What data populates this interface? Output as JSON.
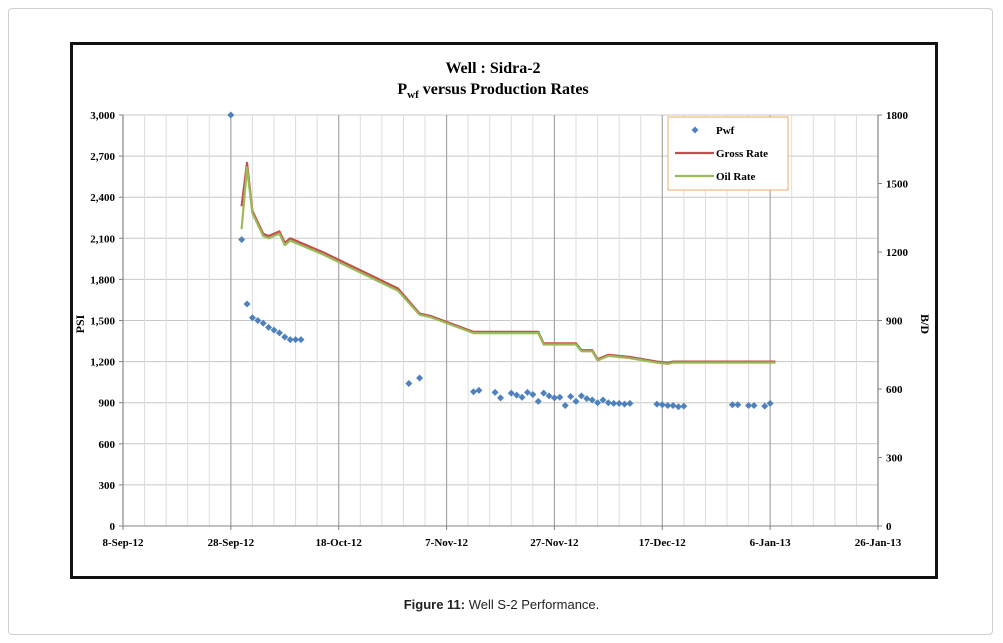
{
  "caption": {
    "label": "Figure 11:",
    "text": "Well S-2 Performance."
  },
  "chart_data": {
    "type": "line",
    "title_line1": "Well : Sidra-2",
    "title_line2": {
      "base": "P",
      "sub": "wf",
      "rest": " versus  Production Rates"
    },
    "xlabel": "",
    "ylabel_left": "PSI",
    "ylabel_right": "B/D",
    "x_ticks": [
      "8-Sep-12",
      "28-Sep-12",
      "18-Oct-12",
      "7-Nov-12",
      "27-Nov-12",
      "17-Dec-12",
      "6-Jan-13",
      "26-Jan-13"
    ],
    "xlim": [
      "2012-09-08",
      "2013-01-26"
    ],
    "ylim_left": [
      0,
      3000
    ],
    "y_ticks_left": [
      "0",
      "300",
      "600",
      "900",
      "1,200",
      "1,500",
      "1,800",
      "2,100",
      "2,400",
      "2,700",
      "3,000"
    ],
    "ylim_right": [
      0,
      1800
    ],
    "y_ticks_right": [
      "0",
      "300",
      "600",
      "900",
      "1200",
      "1500",
      "1800"
    ],
    "grid": true,
    "legend_position": "top-right",
    "colors": {
      "pwf": "#4f81bd",
      "gross": "#c0504d",
      "oil": "#9bbb59"
    },
    "series": [
      {
        "name": "Pwf",
        "axis": "left",
        "kind": "scatter",
        "points": [
          [
            "2012-09-28",
            3000
          ],
          [
            "2012-09-30",
            2090
          ],
          [
            "2012-10-01",
            1620
          ],
          [
            "2012-10-02",
            1520
          ],
          [
            "2012-10-03",
            1500
          ],
          [
            "2012-10-04",
            1480
          ],
          [
            "2012-10-05",
            1450
          ],
          [
            "2012-10-06",
            1430
          ],
          [
            "2012-10-07",
            1410
          ],
          [
            "2012-10-08",
            1380
          ],
          [
            "2012-10-09",
            1360
          ],
          [
            "2012-10-10",
            1360
          ],
          [
            "2012-10-11",
            1360
          ],
          [
            "2012-10-31",
            1040
          ],
          [
            "2012-11-02",
            1080
          ],
          [
            "2012-11-12",
            980
          ],
          [
            "2012-11-13",
            990
          ],
          [
            "2012-11-16",
            975
          ],
          [
            "2012-11-17",
            935
          ],
          [
            "2012-11-19",
            970
          ],
          [
            "2012-11-20",
            955
          ],
          [
            "2012-11-21",
            940
          ],
          [
            "2012-11-22",
            975
          ],
          [
            "2012-11-23",
            960
          ],
          [
            "2012-11-24",
            910
          ],
          [
            "2012-11-25",
            970
          ],
          [
            "2012-11-26",
            950
          ],
          [
            "2012-11-27",
            935
          ],
          [
            "2012-11-28",
            940
          ],
          [
            "2012-11-29",
            880
          ],
          [
            "2012-11-30",
            945
          ],
          [
            "2012-12-01",
            910
          ],
          [
            "2012-12-02",
            950
          ],
          [
            "2012-12-03",
            930
          ],
          [
            "2012-12-04",
            920
          ],
          [
            "2012-12-05",
            900
          ],
          [
            "2012-12-06",
            920
          ],
          [
            "2012-12-07",
            900
          ],
          [
            "2012-12-08",
            895
          ],
          [
            "2012-12-09",
            895
          ],
          [
            "2012-12-10",
            890
          ],
          [
            "2012-12-11",
            895
          ],
          [
            "2012-12-16",
            890
          ],
          [
            "2012-12-17",
            885
          ],
          [
            "2012-12-18",
            880
          ],
          [
            "2012-12-19",
            880
          ],
          [
            "2012-12-20",
            870
          ],
          [
            "2012-12-21",
            875
          ],
          [
            "2012-12-30",
            885
          ],
          [
            "2012-12-31",
            885
          ],
          [
            "2013-01-02",
            880
          ],
          [
            "2013-01-03",
            880
          ],
          [
            "2013-01-05",
            875
          ],
          [
            "2013-01-06",
            895
          ]
        ]
      },
      {
        "name": "Gross  Rate",
        "axis": "right",
        "kind": "line",
        "points": [
          [
            "2012-09-30",
            1400
          ],
          [
            "2012-10-01",
            1590
          ],
          [
            "2012-10-02",
            1380
          ],
          [
            "2012-10-04",
            1280
          ],
          [
            "2012-10-05",
            1270
          ],
          [
            "2012-10-07",
            1290
          ],
          [
            "2012-10-08",
            1240
          ],
          [
            "2012-10-09",
            1260
          ],
          [
            "2012-10-15",
            1200
          ],
          [
            "2012-10-22",
            1120
          ],
          [
            "2012-10-29",
            1040
          ],
          [
            "2012-11-02",
            930
          ],
          [
            "2012-11-04",
            920
          ],
          [
            "2012-11-12",
            850
          ],
          [
            "2012-11-24",
            850
          ],
          [
            "2012-11-25",
            800
          ],
          [
            "2012-12-01",
            800
          ],
          [
            "2012-12-02",
            770
          ],
          [
            "2012-12-04",
            770
          ],
          [
            "2012-12-05",
            730
          ],
          [
            "2012-12-07",
            750
          ],
          [
            "2012-12-11",
            740
          ],
          [
            "2012-12-16",
            720
          ],
          [
            "2012-12-18",
            715
          ],
          [
            "2012-12-19",
            720
          ],
          [
            "2013-01-07",
            720
          ]
        ]
      },
      {
        "name": "Oil Rate",
        "axis": "right",
        "kind": "line",
        "points": [
          [
            "2012-09-30",
            1300
          ],
          [
            "2012-10-01",
            1570
          ],
          [
            "2012-10-02",
            1370
          ],
          [
            "2012-10-04",
            1270
          ],
          [
            "2012-10-05",
            1260
          ],
          [
            "2012-10-07",
            1280
          ],
          [
            "2012-10-08",
            1230
          ],
          [
            "2012-10-09",
            1250
          ],
          [
            "2012-10-15",
            1190
          ],
          [
            "2012-10-22",
            1110
          ],
          [
            "2012-10-29",
            1030
          ],
          [
            "2012-11-02",
            925
          ],
          [
            "2012-11-04",
            915
          ],
          [
            "2012-11-12",
            845
          ],
          [
            "2012-11-24",
            845
          ],
          [
            "2012-11-25",
            795
          ],
          [
            "2012-12-01",
            795
          ],
          [
            "2012-12-02",
            765
          ],
          [
            "2012-12-04",
            765
          ],
          [
            "2012-12-05",
            725
          ],
          [
            "2012-12-07",
            745
          ],
          [
            "2012-12-11",
            735
          ],
          [
            "2012-12-16",
            715
          ],
          [
            "2012-12-18",
            710
          ],
          [
            "2012-12-19",
            715
          ],
          [
            "2013-01-07",
            715
          ]
        ]
      }
    ]
  }
}
